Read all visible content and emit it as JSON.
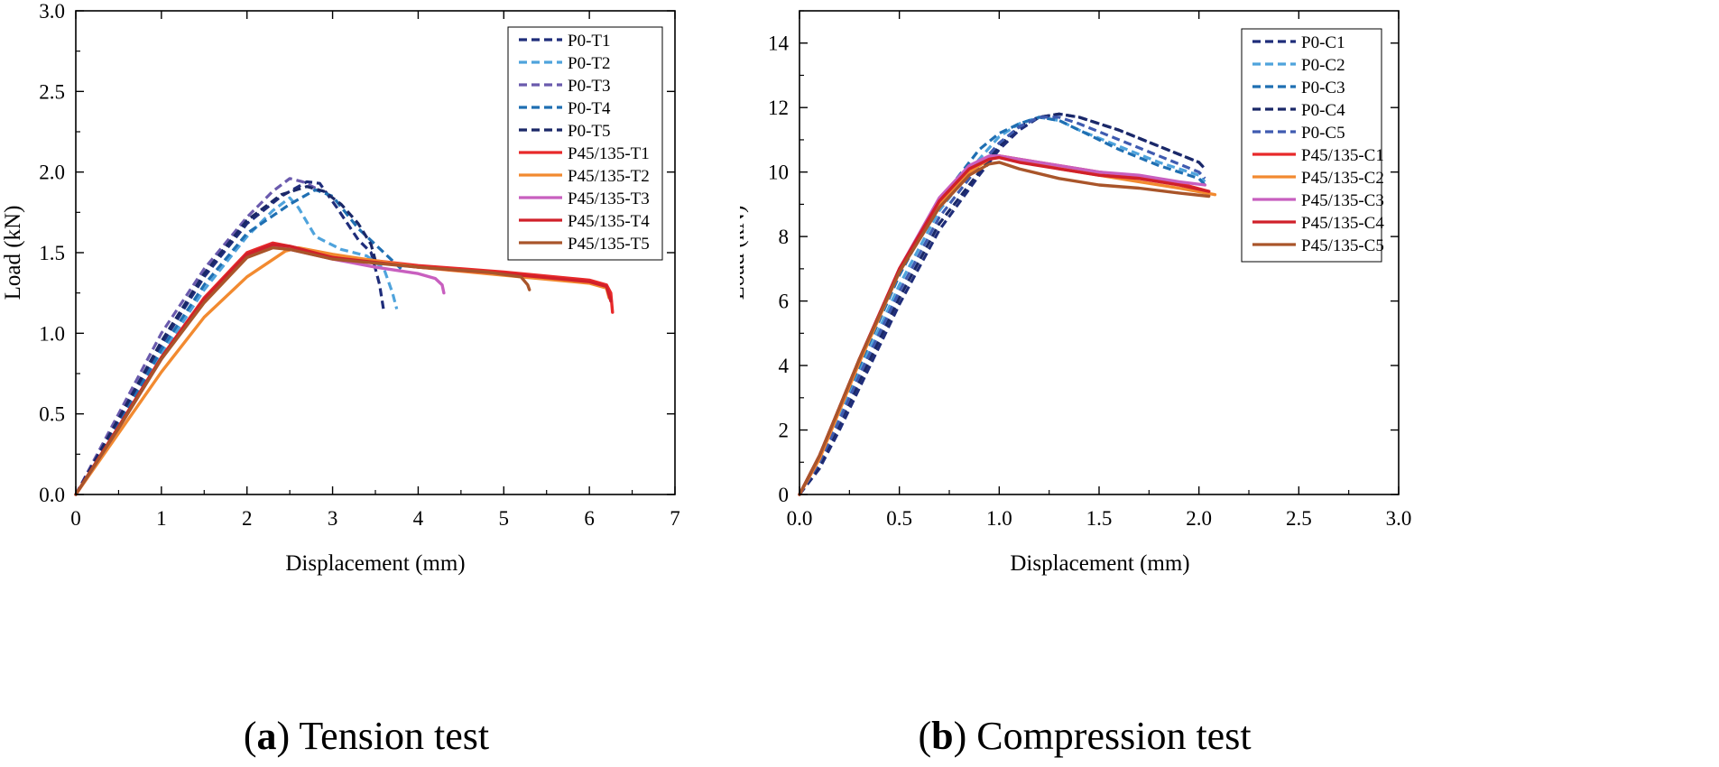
{
  "chart_data": [
    {
      "type": "line",
      "caption_letter": "a",
      "caption_text": " Tension test",
      "xlabel": "Displacement (mm)",
      "ylabel": "Load (kN)",
      "xlim": [
        0,
        7
      ],
      "ylim": [
        0,
        3.0
      ],
      "xticks": [
        "0",
        "1",
        "2",
        "3",
        "4",
        "5",
        "6",
        "7"
      ],
      "yticks": [
        "0.0",
        "0.5",
        "1.0",
        "1.5",
        "2.0",
        "2.5",
        "3.0"
      ],
      "legend_position": "top-right",
      "grid": false,
      "series": [
        {
          "name": "P0-T1",
          "color": "#1f2d7a",
          "dashed": true,
          "x": [
            0,
            0.5,
            1.0,
            1.5,
            2.0,
            2.4,
            2.7,
            2.85,
            3.05,
            3.3,
            3.45,
            3.55,
            3.6
          ],
          "y": [
            0,
            0.45,
            0.93,
            1.35,
            1.68,
            1.85,
            1.94,
            1.93,
            1.78,
            1.58,
            1.5,
            1.3,
            1.13
          ]
        },
        {
          "name": "P0-T2",
          "color": "#4fa3dc",
          "dashed": true,
          "x": [
            0,
            0.5,
            1.0,
            1.5,
            2.0,
            2.3,
            2.5,
            2.6,
            2.8,
            3.1,
            3.4,
            3.6,
            3.7,
            3.75
          ],
          "y": [
            0,
            0.42,
            0.87,
            1.27,
            1.6,
            1.76,
            1.84,
            1.78,
            1.6,
            1.52,
            1.48,
            1.4,
            1.25,
            1.15
          ]
        },
        {
          "name": "P0-T3",
          "color": "#6a5aad",
          "dashed": true,
          "x": [
            0,
            0.5,
            1.0,
            1.5,
            2.0,
            2.3,
            2.5,
            2.65,
            2.8
          ],
          "y": [
            0,
            0.5,
            1.0,
            1.4,
            1.72,
            1.88,
            1.96,
            1.94,
            1.9
          ]
        },
        {
          "name": "P0-T4",
          "color": "#1f6fb2",
          "dashed": true,
          "x": [
            0,
            0.5,
            1.0,
            1.5,
            2.0,
            2.5,
            2.8,
            3.0,
            3.3,
            3.6,
            3.8
          ],
          "y": [
            0,
            0.43,
            0.9,
            1.3,
            1.62,
            1.8,
            1.89,
            1.85,
            1.65,
            1.5,
            1.4
          ]
        },
        {
          "name": "P0-T5",
          "color": "#1a2868",
          "dashed": true,
          "x": [
            0,
            0.5,
            1.0,
            1.5,
            2.0,
            2.4,
            2.7,
            2.9,
            3.1,
            3.3,
            3.45,
            3.5
          ],
          "y": [
            0,
            0.47,
            0.95,
            1.37,
            1.7,
            1.86,
            1.91,
            1.88,
            1.8,
            1.68,
            1.55,
            1.45
          ]
        },
        {
          "name": "P45/135-T1",
          "color": "#e8292a",
          "dashed": false,
          "x": [
            0,
            0.5,
            1.0,
            1.5,
            2.0,
            2.3,
            2.5,
            3.0,
            4.0,
            5.0,
            6.0,
            6.2,
            6.25,
            6.27
          ],
          "y": [
            0,
            0.42,
            0.85,
            1.22,
            1.5,
            1.56,
            1.54,
            1.48,
            1.42,
            1.38,
            1.33,
            1.3,
            1.25,
            1.13
          ]
        },
        {
          "name": "P45/135-T2",
          "color": "#f28a30",
          "dashed": false,
          "x": [
            0,
            0.5,
            1.0,
            1.5,
            2.0,
            2.45,
            2.6,
            3.0,
            4.0,
            5.0,
            6.0,
            6.2,
            6.23
          ],
          "y": [
            0,
            0.38,
            0.76,
            1.1,
            1.35,
            1.51,
            1.53,
            1.49,
            1.41,
            1.36,
            1.31,
            1.28,
            1.22
          ]
        },
        {
          "name": "P45/135-T3",
          "color": "#c85fbf",
          "dashed": false,
          "x": [
            0,
            0.5,
            1.0,
            1.5,
            2.0,
            2.3,
            2.5,
            3.0,
            3.5,
            4.0,
            4.2,
            4.28,
            4.3
          ],
          "y": [
            0,
            0.41,
            0.84,
            1.2,
            1.48,
            1.55,
            1.52,
            1.46,
            1.41,
            1.37,
            1.34,
            1.3,
            1.25
          ]
        },
        {
          "name": "P45/135-T4",
          "color": "#d0202a",
          "dashed": false,
          "x": [
            0,
            0.5,
            1.0,
            1.5,
            2.0,
            2.3,
            2.5,
            3.0,
            4.0,
            5.0,
            6.0,
            6.2,
            6.25
          ],
          "y": [
            0,
            0.42,
            0.85,
            1.21,
            1.49,
            1.55,
            1.54,
            1.47,
            1.41,
            1.37,
            1.32,
            1.29,
            1.2
          ]
        },
        {
          "name": "P45/135-T5",
          "color": "#a9552a",
          "dashed": false,
          "x": [
            0,
            0.5,
            1.0,
            1.5,
            2.0,
            2.3,
            2.5,
            3.0,
            4.0,
            4.8,
            5.2,
            5.28,
            5.3
          ],
          "y": [
            0,
            0.41,
            0.84,
            1.19,
            1.47,
            1.53,
            1.52,
            1.46,
            1.41,
            1.38,
            1.35,
            1.3,
            1.27
          ]
        }
      ]
    },
    {
      "type": "line",
      "caption_letter": "b",
      "caption_text": " Compression test",
      "xlabel": "Displacement (mm)",
      "ylabel": "Load (kN)",
      "xlim": [
        0,
        3.0
      ],
      "ylim": [
        0,
        15
      ],
      "xticks": [
        "0.0",
        "0.5",
        "1.0",
        "1.5",
        "2.0",
        "2.5",
        "3.0"
      ],
      "yticks": [
        "0",
        "2",
        "4",
        "6",
        "8",
        "10",
        "12",
        "14"
      ],
      "legend_position": "top-right",
      "grid": false,
      "series": [
        {
          "name": "P0-C1",
          "color": "#1f2d7a",
          "dashed": true,
          "x": [
            0,
            0.1,
            0.2,
            0.3,
            0.5,
            0.7,
            0.9,
            1.0,
            1.1,
            1.2,
            1.3,
            1.4,
            1.6,
            1.8,
            2.0,
            2.03
          ],
          "y": [
            0,
            0.8,
            2.0,
            3.3,
            5.9,
            8.2,
            9.9,
            10.7,
            11.3,
            11.7,
            11.8,
            11.7,
            11.3,
            10.8,
            10.3,
            10.1
          ]
        },
        {
          "name": "P0-C2",
          "color": "#4fa3dc",
          "dashed": true,
          "x": [
            0,
            0.1,
            0.2,
            0.3,
            0.5,
            0.7,
            0.9,
            1.0,
            1.1,
            1.2,
            1.3,
            1.4,
            1.6,
            1.8,
            2.0,
            2.03
          ],
          "y": [
            0,
            1.0,
            2.4,
            3.8,
            6.5,
            8.8,
            10.4,
            11.1,
            11.5,
            11.7,
            11.6,
            11.3,
            10.8,
            10.3,
            9.9,
            9.7
          ]
        },
        {
          "name": "P0-C3",
          "color": "#1f6fb2",
          "dashed": true,
          "x": [
            0,
            0.1,
            0.2,
            0.3,
            0.5,
            0.7,
            0.9,
            1.0,
            1.1,
            1.2,
            1.3,
            1.4,
            1.6,
            1.8,
            2.0,
            2.03
          ],
          "y": [
            0,
            1.1,
            2.6,
            4.0,
            6.8,
            9.1,
            10.7,
            11.2,
            11.5,
            11.7,
            11.6,
            11.3,
            10.7,
            10.2,
            9.8,
            9.6
          ]
        },
        {
          "name": "P0-C4",
          "color": "#1a2868",
          "dashed": true,
          "x": [
            0,
            0.1,
            0.2,
            0.3,
            0.5,
            0.7,
            0.9,
            1.0,
            1.1,
            1.2,
            1.3,
            1.4,
            1.6,
            1.8,
            2.0,
            2.03
          ],
          "y": [
            0,
            0.9,
            2.2,
            3.5,
            6.1,
            8.4,
            10.0,
            10.8,
            11.4,
            11.7,
            11.8,
            11.7,
            11.3,
            10.8,
            10.3,
            10.1
          ]
        },
        {
          "name": "P0-C5",
          "color": "#3f5bb0",
          "dashed": true,
          "x": [
            0,
            0.1,
            0.2,
            0.3,
            0.5,
            0.7,
            0.9,
            1.0,
            1.1,
            1.2,
            1.3,
            1.4,
            1.6,
            1.8,
            2.0,
            2.03
          ],
          "y": [
            0,
            1.0,
            2.3,
            3.7,
            6.3,
            8.6,
            10.2,
            10.9,
            11.4,
            11.7,
            11.7,
            11.5,
            11.0,
            10.5,
            10.0,
            9.8
          ]
        },
        {
          "name": "P45/135-C1",
          "color": "#e8292a",
          "dashed": false,
          "x": [
            0,
            0.1,
            0.2,
            0.3,
            0.5,
            0.7,
            0.85,
            0.95,
            1.0,
            1.1,
            1.3,
            1.5,
            1.7,
            1.9,
            2.05
          ],
          "y": [
            0,
            1.2,
            2.7,
            4.2,
            7.0,
            9.1,
            10.1,
            10.45,
            10.5,
            10.4,
            10.2,
            10.0,
            9.85,
            9.65,
            9.4
          ]
        },
        {
          "name": "P45/135-C2",
          "color": "#f28a30",
          "dashed": false,
          "x": [
            0,
            0.1,
            0.2,
            0.3,
            0.5,
            0.7,
            0.85,
            0.95,
            1.0,
            1.1,
            1.3,
            1.5,
            1.7,
            1.9,
            2.08
          ],
          "y": [
            0,
            1.1,
            2.6,
            4.1,
            6.9,
            9.0,
            10.0,
            10.4,
            10.5,
            10.4,
            10.1,
            9.9,
            9.7,
            9.5,
            9.3
          ]
        },
        {
          "name": "P45/135-C3",
          "color": "#c85fbf",
          "dashed": false,
          "x": [
            0,
            0.1,
            0.2,
            0.3,
            0.5,
            0.7,
            0.85,
            0.95,
            1.0,
            1.1,
            1.3,
            1.5,
            1.7,
            1.9,
            2.03
          ],
          "y": [
            0,
            1.2,
            2.7,
            4.2,
            7.0,
            9.2,
            10.2,
            10.5,
            10.5,
            10.4,
            10.2,
            10.0,
            9.9,
            9.7,
            9.6
          ]
        },
        {
          "name": "P45/135-C4",
          "color": "#d0202a",
          "dashed": false,
          "x": [
            0,
            0.1,
            0.2,
            0.3,
            0.5,
            0.7,
            0.85,
            0.95,
            1.0,
            1.1,
            1.3,
            1.5,
            1.7,
            1.9,
            2.05
          ],
          "y": [
            0,
            1.2,
            2.7,
            4.2,
            7.0,
            9.1,
            10.1,
            10.4,
            10.45,
            10.3,
            10.1,
            9.9,
            9.8,
            9.6,
            9.4
          ]
        },
        {
          "name": "P45/135-C5",
          "color": "#a9552a",
          "dashed": false,
          "x": [
            0,
            0.1,
            0.2,
            0.3,
            0.5,
            0.7,
            0.85,
            0.95,
            1.0,
            1.1,
            1.3,
            1.5,
            1.7,
            1.9,
            2.05
          ],
          "y": [
            0,
            1.2,
            2.7,
            4.2,
            6.9,
            8.9,
            9.9,
            10.25,
            10.3,
            10.1,
            9.8,
            9.6,
            9.5,
            9.35,
            9.25
          ]
        }
      ]
    }
  ]
}
